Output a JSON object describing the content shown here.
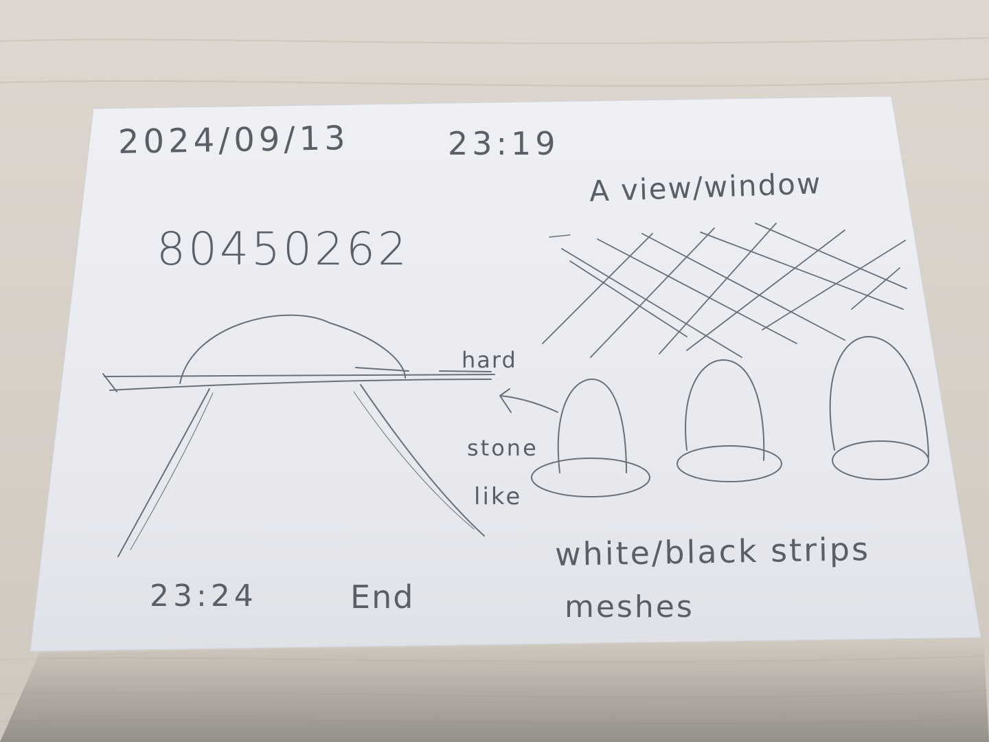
{
  "notes": {
    "date": "2024/09/13",
    "start_time": "23:19",
    "code": "80450262",
    "view_label": "A view/window",
    "hard_label": "hard",
    "stone_label": "stone",
    "like_label": "like",
    "strips_label": "white/black strips",
    "meshes_label": "meshes",
    "end_time": "23:24",
    "end_label": "End"
  },
  "colors": {
    "desk": "#d9d3cb",
    "paper": "#eceef2",
    "pencil": "#5b5e66"
  }
}
